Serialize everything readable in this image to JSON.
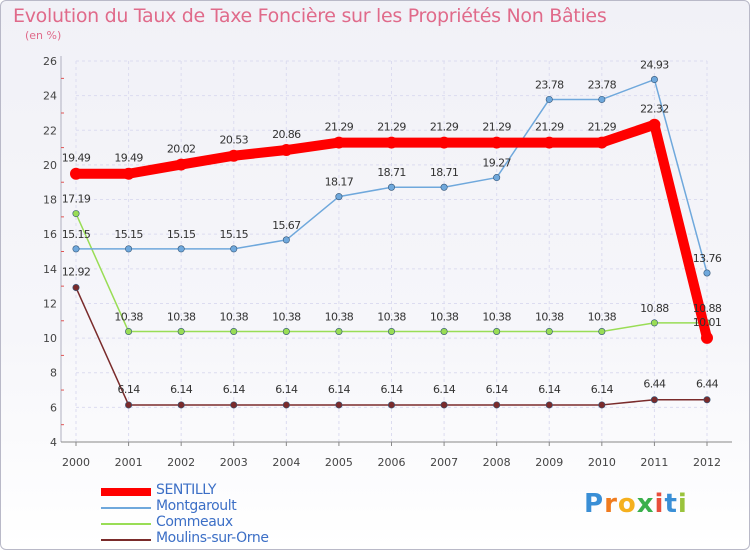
{
  "title": "Evolution du Taux de Taxe Foncière sur les Propriétés Non Bâties",
  "subtitle": "(en %)",
  "brand": {
    "letters": [
      "P",
      "r",
      "o",
      "x",
      "i",
      "t",
      "i"
    ],
    "colors": [
      "#3a8fd6",
      "#f07b1e",
      "#f5b01e",
      "#3ab04c",
      "#e84e3c",
      "#3a8fd6",
      "#9ac33c"
    ]
  },
  "chart_data": {
    "type": "line",
    "title": "Evolution du Taux de Taxe Foncière sur les Propriétés Non Bâties",
    "ylabel": "(en %)",
    "xlabel": "",
    "x": [
      "2000",
      "2001",
      "2002",
      "2003",
      "2004",
      "2005",
      "2006",
      "2007",
      "2008",
      "2009",
      "2010",
      "2011",
      "2012"
    ],
    "ylim": [
      4,
      26
    ],
    "yticks": [
      "4",
      "6",
      "8",
      "10",
      "12",
      "14",
      "16",
      "18",
      "20",
      "22",
      "24",
      "26"
    ],
    "grid": true,
    "legend": "bottom-left",
    "series": [
      {
        "name": "SENTILLY",
        "color": "#ff0000",
        "values": [
          19.49,
          19.49,
          20.02,
          20.53,
          20.86,
          21.29,
          21.29,
          21.29,
          21.29,
          21.29,
          21.29,
          22.32,
          10.01
        ],
        "labels": [
          "19.49",
          "19.49",
          "20.02",
          "20.53",
          "20.86",
          "21.29",
          "21.29",
          "21.29",
          "21.29",
          "21.29",
          "21.29",
          "22.32",
          "10.01"
        ]
      },
      {
        "name": "Montgaroult",
        "color": "#6fa8dc",
        "values": [
          15.15,
          15.15,
          15.15,
          15.15,
          15.67,
          18.17,
          18.71,
          18.71,
          19.27,
          23.78,
          23.78,
          24.93,
          13.76
        ],
        "labels": [
          "15.15",
          "15.15",
          "15.15",
          "15.15",
          "15.67",
          "18.17",
          "18.71",
          "18.71",
          "19.27",
          "23.78",
          "23.78",
          "24.93",
          "13.76"
        ]
      },
      {
        "name": "Commeaux",
        "color": "#99dd55",
        "values": [
          17.19,
          10.38,
          10.38,
          10.38,
          10.38,
          10.38,
          10.38,
          10.38,
          10.38,
          10.38,
          10.38,
          10.88,
          10.88
        ],
        "labels": [
          "17.19",
          "10.38",
          "10.38",
          "10.38",
          "10.38",
          "10.38",
          "10.38",
          "10.38",
          "10.38",
          "10.38",
          "10.38",
          "10.88",
          "10.88"
        ]
      },
      {
        "name": "Moulins-sur-Orne",
        "color": "#7a2b2b",
        "values": [
          12.92,
          6.14,
          6.14,
          6.14,
          6.14,
          6.14,
          6.14,
          6.14,
          6.14,
          6.14,
          6.14,
          6.44,
          6.44
        ],
        "labels": [
          "12.92",
          "6.14",
          "6.14",
          "6.14",
          "6.14",
          "6.14",
          "6.14",
          "6.14",
          "6.14",
          "6.14",
          "6.14",
          "6.44",
          "6.44"
        ]
      }
    ]
  }
}
